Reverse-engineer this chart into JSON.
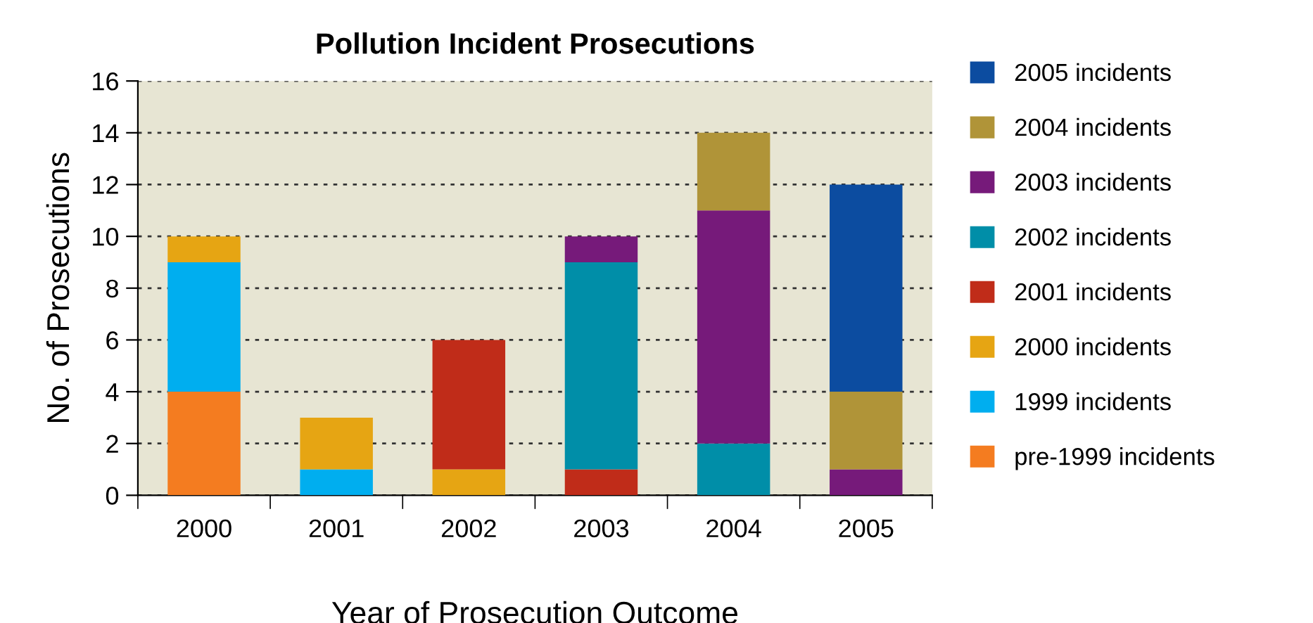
{
  "chart_data": {
    "type": "bar",
    "title": "Pollution Incident Prosecutions",
    "xlabel": "Year of Prosecution Outcome",
    "ylabel": "No. of Prosecutions",
    "categories": [
      "2000",
      "2001",
      "2002",
      "2003",
      "2004",
      "2005"
    ],
    "stacked": true,
    "ylim": [
      0,
      16
    ],
    "yticks": [
      0,
      2,
      4,
      6,
      8,
      10,
      12,
      14,
      16
    ],
    "grid": "y",
    "legend": "right",
    "series": [
      {
        "name": "pre-1999 incidents",
        "color": "#f47c20",
        "values": [
          4,
          null,
          null,
          null,
          null,
          null
        ]
      },
      {
        "name": "1999 incidents",
        "color": "#00aeef",
        "values": [
          5,
          1,
          null,
          null,
          null,
          null
        ]
      },
      {
        "name": "2000 incidents",
        "color": "#e6a513",
        "values": [
          1,
          2,
          1,
          null,
          null,
          null
        ]
      },
      {
        "name": "2001 incidents",
        "color": "#c02c19",
        "values": [
          null,
          null,
          5,
          1,
          null,
          null
        ]
      },
      {
        "name": "2002 incidents",
        "color": "#008ea8",
        "values": [
          null,
          null,
          null,
          8,
          2,
          null
        ]
      },
      {
        "name": "2003 incidents",
        "color": "#761a7a",
        "values": [
          null,
          null,
          null,
          1,
          9,
          1
        ]
      },
      {
        "name": "2004 incidents",
        "color": "#b09438",
        "values": [
          null,
          null,
          null,
          null,
          3,
          3
        ]
      },
      {
        "name": "2005 incidents",
        "color": "#0c4ca0",
        "values": [
          null,
          null,
          null,
          null,
          null,
          8
        ]
      }
    ]
  }
}
